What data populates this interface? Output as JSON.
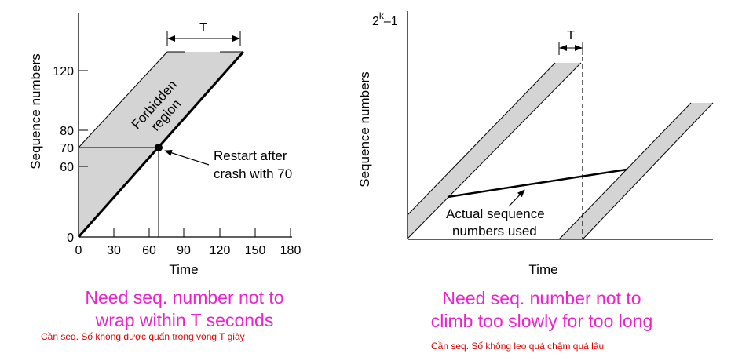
{
  "left": {
    "ylabel": "Sequence numbers",
    "xlabel": "Time",
    "x_ticks": [
      "0",
      "30",
      "60",
      "90",
      "120",
      "150",
      "180"
    ],
    "y_ticks": [
      "0",
      "60",
      "70",
      "80",
      "120"
    ],
    "T_label": "T",
    "region_line1": "Forbidden",
    "region_line2": "region",
    "annotation_line1": "Restart after",
    "annotation_line2": "crash with 70",
    "caption_line1": "Need seq. number not to",
    "caption_line2": "wrap within T seconds",
    "caption_vi": "Cần seq. Số không được quấn trong vòng T giây"
  },
  "right": {
    "ylabel": "Sequence numbers",
    "xlabel": "Time",
    "ymax_label_base": "2",
    "ymax_label_sup": "k",
    "ymax_label_tail": "–1",
    "T_label": "T",
    "annotation_line1": "Actual sequence",
    "annotation_line2": "numbers used",
    "caption_line1": "Need seq. number not to",
    "caption_line2": "climb too slowly for too long",
    "caption_vi": "Cần seq. Số không leo quá chậm quá lâu"
  },
  "colors": {
    "region_fill": "#d4d4d4",
    "caption": "#ee22cc",
    "caption_vi": "#dd0000"
  }
}
